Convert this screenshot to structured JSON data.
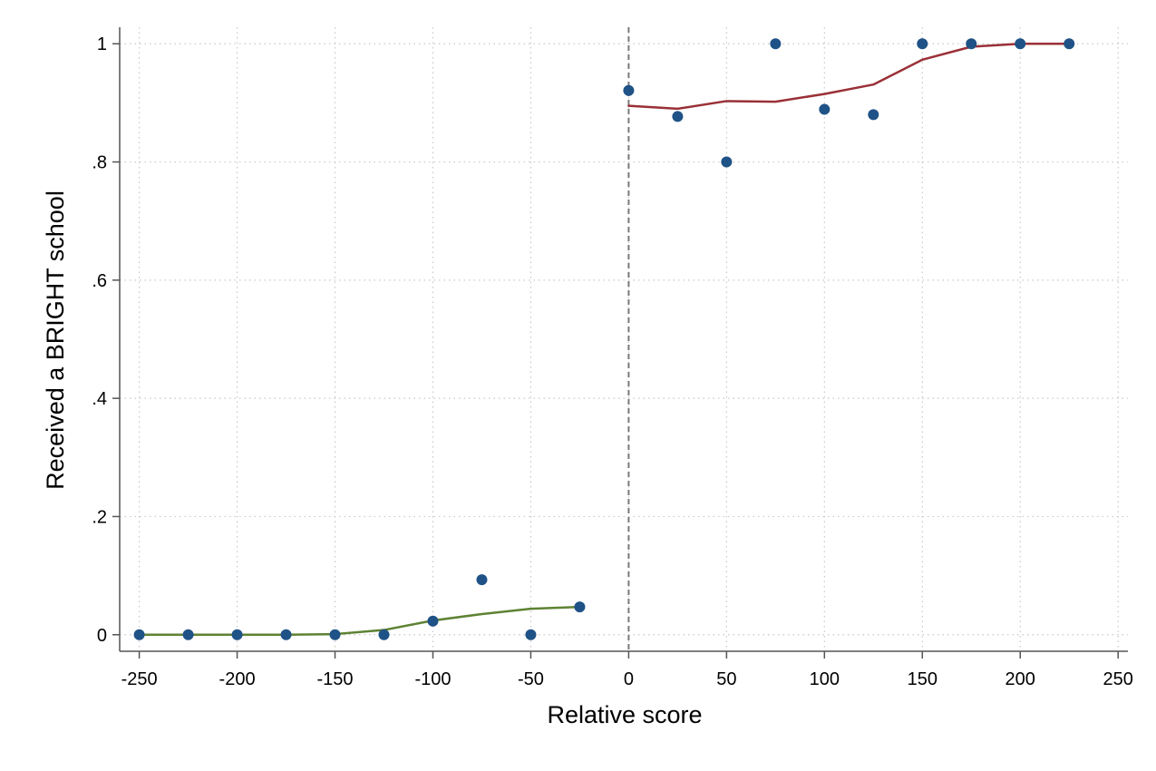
{
  "chart_data": {
    "type": "scatter",
    "xlabel": "Relative score",
    "ylabel": "Received a BRIGHT school",
    "xlim": [
      -260,
      255
    ],
    "ylim": [
      -0.028,
      1.028
    ],
    "x_ticks": [
      -250,
      -200,
      -150,
      -100,
      -50,
      0,
      50,
      100,
      150,
      200,
      250
    ],
    "x_tick_labels": [
      "-250",
      "-200",
      "-150",
      "-100",
      "-50",
      "0",
      "50",
      "100",
      "150",
      "200",
      "250"
    ],
    "y_ticks": [
      0,
      0.2,
      0.4,
      0.6,
      0.8,
      1
    ],
    "y_tick_labels": [
      "0",
      ".2",
      ".4",
      ".6",
      ".8",
      "1"
    ],
    "grid": true,
    "cutoff_line": {
      "x": 0,
      "style": "dashed",
      "color": "#7a7a7a"
    },
    "series": [
      {
        "kind": "scatter",
        "color": "#1f5286",
        "points": [
          [
            -250,
            0
          ],
          [
            -225,
            0
          ],
          [
            -200,
            0
          ],
          [
            -175,
            0
          ],
          [
            -150,
            0
          ],
          [
            -125,
            0
          ],
          [
            -100,
            0.023
          ],
          [
            -75,
            0.093
          ],
          [
            -50,
            0
          ],
          [
            -25,
            0.047
          ],
          [
            0,
            0.921
          ],
          [
            25,
            0.877
          ],
          [
            50,
            0.8
          ],
          [
            75,
            1.0
          ],
          [
            100,
            0.889
          ],
          [
            125,
            0.88
          ],
          [
            150,
            1.0
          ],
          [
            175,
            1.0
          ],
          [
            200,
            1.0
          ],
          [
            225,
            1.0
          ]
        ]
      },
      {
        "kind": "line",
        "color": "#5e8232",
        "points": [
          [
            -250,
            0
          ],
          [
            -225,
            0
          ],
          [
            -200,
            0
          ],
          [
            -175,
            0
          ],
          [
            -150,
            0.001
          ],
          [
            -125,
            0.008
          ],
          [
            -100,
            0.024
          ],
          [
            -75,
            0.035
          ],
          [
            -50,
            0.044
          ],
          [
            -25,
            0.047
          ]
        ]
      },
      {
        "kind": "line",
        "color": "#9a3037",
        "points": [
          [
            0,
            0.895
          ],
          [
            25,
            0.89
          ],
          [
            50,
            0.903
          ],
          [
            75,
            0.902
          ],
          [
            100,
            0.915
          ],
          [
            125,
            0.931
          ],
          [
            150,
            0.973
          ],
          [
            175,
            0.995
          ],
          [
            200,
            1.0
          ],
          [
            225,
            1.0
          ]
        ]
      }
    ]
  }
}
